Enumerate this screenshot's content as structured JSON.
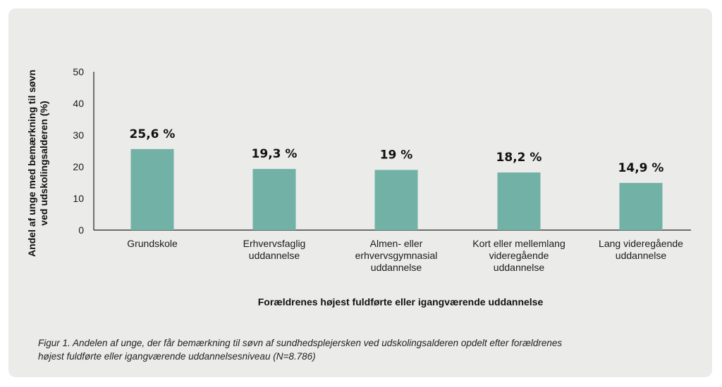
{
  "chart_data": {
    "type": "bar",
    "categories": [
      [
        "Grundskole"
      ],
      [
        "Erhvervsfaglig",
        "uddannelse"
      ],
      [
        "Almen- eller",
        "erhvervsgymnasial",
        "uddannelse"
      ],
      [
        "Kort eller mellemlang",
        "videregående",
        "uddannelse"
      ],
      [
        "Lang videregående",
        "uddannelse"
      ]
    ],
    "values": [
      25.6,
      19.3,
      19,
      18.2,
      14.9
    ],
    "data_labels": [
      "25,6 %",
      "19,3 %",
      "19 %",
      "18,2 %",
      "14,9 %"
    ],
    "ylabel_lines": [
      "Andel af unge med bemærkning til søvn",
      "ved udskolingsalderen (%)"
    ],
    "xlabel": "Forældrenes højest fuldførte eller igangværende uddannelse",
    "ylim": [
      0,
      50
    ],
    "yticks": [
      0,
      10,
      20,
      30,
      40,
      50
    ],
    "grid": false,
    "bar_color": "#72b2a6"
  },
  "caption_lines": [
    "Figur 1. Andelen af unge, der får bemærkning til søvn af sundhedsplejersken ved udskolingsalderen opdelt efter forældrenes",
    "højest fuldførte eller igangværende uddannelsesniveau (N=8.786)"
  ]
}
